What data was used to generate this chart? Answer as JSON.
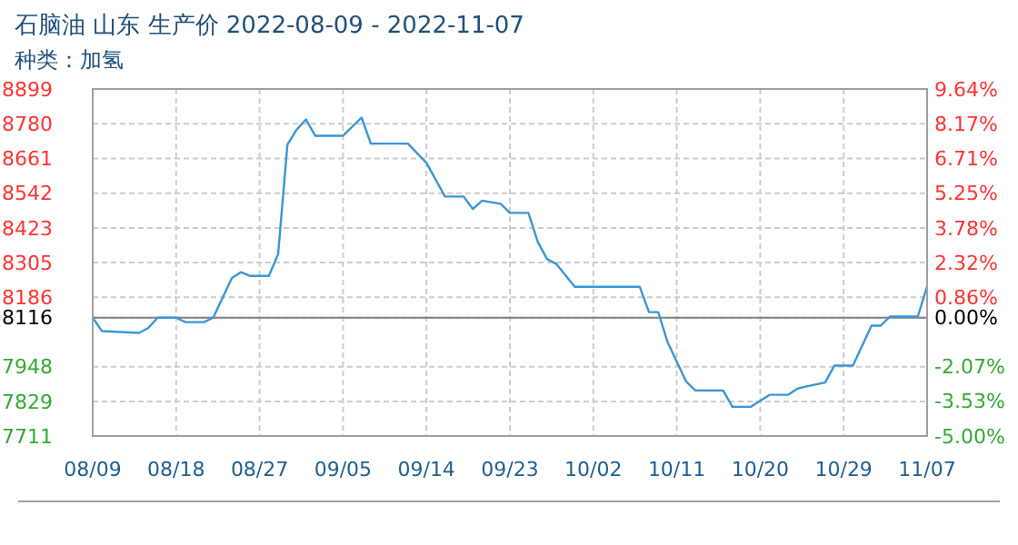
{
  "chart_data": {
    "type": "line",
    "title": "石脑油 山东 生产价 2022-08-09 - 2022-11-07",
    "subtitle": "种类：加氢",
    "x": [
      "2022-08-09",
      "2022-08-10",
      "2022-08-14",
      "2022-08-15",
      "2022-08-16",
      "2022-08-18",
      "2022-08-19",
      "2022-08-21",
      "2022-08-22",
      "2022-08-24",
      "2022-08-25",
      "2022-08-26",
      "2022-08-28",
      "2022-08-29",
      "2022-08-30",
      "2022-08-31",
      "2022-09-01",
      "2022-09-02",
      "2022-09-05",
      "2022-09-07",
      "2022-09-08",
      "2022-09-12",
      "2022-09-14",
      "2022-09-16",
      "2022-09-18",
      "2022-09-19",
      "2022-09-20",
      "2022-09-22",
      "2022-09-23",
      "2022-09-25",
      "2022-09-26",
      "2022-09-27",
      "2022-09-28",
      "2022-09-30",
      "2022-10-07",
      "2022-10-08",
      "2022-10-09",
      "2022-10-10",
      "2022-10-12",
      "2022-10-13",
      "2022-10-16",
      "2022-10-17",
      "2022-10-19",
      "2022-10-21",
      "2022-10-23",
      "2022-10-24",
      "2022-10-25",
      "2022-10-27",
      "2022-10-28",
      "2022-10-30",
      "2022-11-01",
      "2022-11-02",
      "2022-11-03",
      "2022-11-06",
      "2022-11-07"
    ],
    "series": [
      {
        "color": "#3a96d6",
        "values": [
          8116,
          8070,
          8064,
          8081,
          8116,
          8116,
          8101,
          8101,
          8116,
          8251,
          8272,
          8259,
          8259,
          8334,
          8708,
          8760,
          8795,
          8739,
          8739,
          8801,
          8712,
          8712,
          8646,
          8531,
          8531,
          8488,
          8517,
          8506,
          8475,
          8475,
          8376,
          8317,
          8300,
          8222,
          8222,
          8135,
          8135,
          8033,
          7898,
          7867,
          7867,
          7811,
          7811,
          7852,
          7852,
          7873,
          7881,
          7894,
          7952,
          7952,
          8089,
          8089,
          8120,
          8120,
          8224
        ]
      }
    ],
    "xlim": [
      "2022-08-09",
      "2022-11-07"
    ],
    "xticks": [
      {
        "value": "2022-08-09",
        "label": "08/09"
      },
      {
        "value": "2022-08-18",
        "label": "08/18"
      },
      {
        "value": "2022-08-27",
        "label": "08/27"
      },
      {
        "value": "2022-09-05",
        "label": "09/05"
      },
      {
        "value": "2022-09-14",
        "label": "09/14"
      },
      {
        "value": "2022-09-23",
        "label": "09/23"
      },
      {
        "value": "2022-10-02",
        "label": "10/02"
      },
      {
        "value": "2022-10-11",
        "label": "10/11"
      },
      {
        "value": "2022-10-20",
        "label": "10/20"
      },
      {
        "value": "2022-10-29",
        "label": "10/29"
      },
      {
        "value": "2022-11-07",
        "label": "11/07"
      }
    ],
    "ylim": [
      7711,
      8899
    ],
    "yticks": [
      7711,
      7829,
      7948,
      8116,
      8186,
      8305,
      8423,
      8542,
      8661,
      8780,
      8899
    ],
    "y2lim": [
      -5,
      9.64
    ],
    "y2ticks": [
      {
        "value": -5,
        "label": "-5.00%"
      },
      {
        "value": -3.53,
        "label": "-3.53%"
      },
      {
        "value": -2.07,
        "label": "-2.07%"
      },
      {
        "value": 0,
        "label": "0.00%"
      },
      {
        "value": 0.86,
        "label": "0.86%"
      },
      {
        "value": 2.32,
        "label": "2.32%"
      },
      {
        "value": 3.78,
        "label": "3.78%"
      },
      {
        "value": 5.25,
        "label": "5.25%"
      },
      {
        "value": 6.71,
        "label": "6.71%"
      },
      {
        "value": 8.17,
        "label": "8.17%"
      },
      {
        "value": 9.64,
        "label": "9.64%"
      }
    ],
    "ref_lines": [
      {
        "axis": "y",
        "value": 8116,
        "color": "#808080"
      }
    ],
    "grid": true,
    "marker": "none",
    "line_style": "solid"
  }
}
